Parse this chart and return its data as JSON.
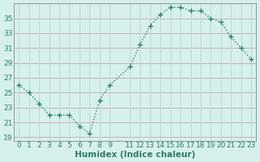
{
  "x": [
    0,
    1,
    2,
    3,
    4,
    5,
    6,
    7,
    8,
    9,
    11,
    12,
    13,
    14,
    15,
    16,
    17,
    18,
    19,
    20,
    21,
    22,
    23
  ],
  "y": [
    26,
    25,
    23.5,
    22,
    22,
    22,
    20.5,
    19.5,
    24,
    26,
    28.5,
    31.5,
    34,
    35.5,
    36.5,
    36.5,
    36,
    36,
    35,
    34.5,
    32.5,
    31,
    29.5
  ],
  "line_color": "#2e7d6e",
  "marker": "+",
  "marker_size": 4.0,
  "bg_color": "#d6f0ec",
  "grid_h_color": "#c8a8a8",
  "grid_v_color": "#b8d4d0",
  "xlabel": "Humidex (Indice chaleur)",
  "xlim": [
    -0.5,
    23.5
  ],
  "ylim": [
    18.5,
    37.0
  ],
  "yticks": [
    19,
    21,
    23,
    25,
    27,
    29,
    31,
    33,
    35
  ],
  "xticks": [
    0,
    1,
    2,
    3,
    4,
    5,
    6,
    7,
    8,
    9,
    11,
    12,
    13,
    14,
    15,
    16,
    17,
    18,
    19,
    20,
    21,
    22,
    23
  ],
  "tick_color": "#2e7d6e",
  "label_color": "#2e7d6e",
  "font_size": 6.5,
  "xlabel_fontsize": 7.5,
  "linewidth": 1.0,
  "spine_color": "#888888"
}
